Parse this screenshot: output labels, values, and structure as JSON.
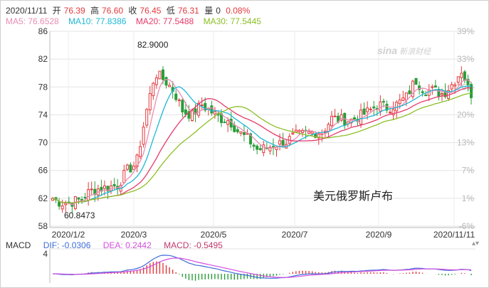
{
  "header": {
    "date": "2020/11/11",
    "open_label": "开",
    "open": "76.39",
    "high_label": "高",
    "high": "76.60",
    "close_label": "收",
    "close": "76.45",
    "low_label": "低",
    "low": "76.31",
    "vol_label": "量",
    "vol": "0",
    "change": "0.08%"
  },
  "ma": {
    "ma5": "MA5: 76.6528",
    "ma10": "MA10: 77.8386",
    "ma20": "MA20: 77.5488",
    "ma30": "MA30: 77.5445"
  },
  "macd": {
    "label": "MACD",
    "dif": "DIF: -0.0306",
    "dea": "DEA: 0.2442",
    "macd": "MACD: -0.5495"
  },
  "watermark": {
    "brand": "sina",
    "text": "新浪财经"
  },
  "caption": "美元俄罗斯卢布",
  "annotations": {
    "high": "82.9000",
    "low": "60.8473"
  },
  "colors": {
    "ma5": "#e98cb3",
    "ma10": "#1fb7d6",
    "ma20": "#e4396b",
    "ma30": "#8cbf26",
    "up": "#e4393c",
    "down": "#2a9d3a",
    "dif": "#3f6bd8",
    "dea": "#d44ee0",
    "macd": "#c0396b"
  },
  "chart_data": {
    "type": "candlestick",
    "title": "",
    "x_ticks": [
      "2020/1/2",
      "2020/3",
      "2020/5",
      "2020/7",
      "2020/9",
      "2020/11/11"
    ],
    "y_ticks_left": [
      86,
      82,
      78,
      74,
      70,
      66,
      62,
      58
    ],
    "y_ticks_right": [
      "39%",
      "33%",
      "26%",
      "20%",
      "13%",
      "7%",
      "1%",
      "-6%"
    ],
    "ylim": [
      58,
      86
    ],
    "macd_ticks": [
      "4"
    ],
    "close_series": [
      [
        "2020/1/2",
        61.9
      ],
      [
        "2020/1/9",
        61.3
      ],
      [
        "2020/1/16",
        61.5
      ],
      [
        "2020/1/23",
        61.8
      ],
      [
        "2020/1/30",
        63.0
      ],
      [
        "2020/2/6",
        63.4
      ],
      [
        "2020/2/13",
        63.6
      ],
      [
        "2020/2/20",
        63.9
      ],
      [
        "2020/2/27",
        66.0
      ],
      [
        "2020/3/5",
        67.0
      ],
      [
        "2020/3/12",
        74.0
      ],
      [
        "2020/3/19",
        80.0
      ],
      [
        "2020/3/26",
        79.0
      ],
      [
        "2020/4/2",
        77.5
      ],
      [
        "2020/4/9",
        74.5
      ],
      [
        "2020/4/16",
        74.0
      ],
      [
        "2020/4/23",
        75.5
      ],
      [
        "2020/4/30",
        74.5
      ],
      [
        "2020/5/7",
        73.5
      ],
      [
        "2020/5/14",
        73.2
      ],
      [
        "2020/5/21",
        71.5
      ],
      [
        "2020/5/28",
        70.5
      ],
      [
        "2020/6/4",
        69.0
      ],
      [
        "2020/6/11",
        69.2
      ],
      [
        "2020/6/18",
        69.8
      ],
      [
        "2020/6/25",
        70.0
      ],
      [
        "2020/7/2",
        71.0
      ],
      [
        "2020/7/9",
        71.2
      ],
      [
        "2020/7/16",
        71.5
      ],
      [
        "2020/7/23",
        71.5
      ],
      [
        "2020/7/30",
        73.5
      ],
      [
        "2020/8/6",
        73.3
      ],
      [
        "2020/8/13",
        73.2
      ],
      [
        "2020/8/20",
        73.8
      ],
      [
        "2020/8/27",
        74.5
      ],
      [
        "2020/9/3",
        75.5
      ],
      [
        "2020/9/10",
        75.0
      ],
      [
        "2020/9/17",
        75.5
      ],
      [
        "2020/9/24",
        76.5
      ],
      [
        "2020/10/1",
        79.0
      ],
      [
        "2020/10/8",
        77.5
      ],
      [
        "2020/10/15",
        77.5
      ],
      [
        "2020/10/22",
        77.0
      ],
      [
        "2020/10/29",
        78.5
      ],
      [
        "2020/11/5",
        80.5
      ],
      [
        "2020/11/11",
        76.45
      ]
    ]
  }
}
